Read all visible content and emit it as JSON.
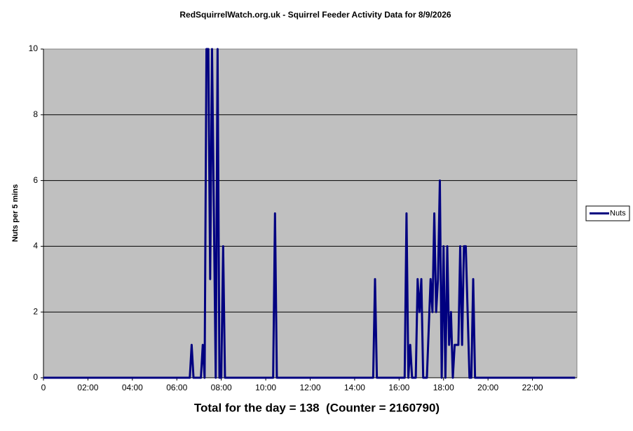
{
  "chart_data": {
    "type": "line",
    "title": "RedSquirrelWatch.org.uk  - Squirrel Feeder Activity Data for 8/9/2026",
    "y_label": "Nuts per 5 mins",
    "annotation": "Total for the day = 138  (Counter = 2160790)",
    "x": [
      0,
      395,
      400,
      405,
      425,
      430,
      435,
      440,
      445,
      450,
      455,
      460,
      465,
      470,
      475,
      480,
      485,
      490,
      620,
      625,
      630,
      890,
      895,
      900,
      975,
      980,
      985,
      990,
      995,
      1005,
      1010,
      1015,
      1020,
      1025,
      1035,
      1045,
      1050,
      1055,
      1060,
      1065,
      1070,
      1075,
      1080,
      1085,
      1090,
      1095,
      1100,
      1105,
      1110,
      1120,
      1125,
      1130,
      1135,
      1140,
      1145,
      1150,
      1155,
      1160,
      1165,
      1435
    ],
    "series": [
      {
        "name": "Nuts",
        "color": "#000080",
        "values": [
          0,
          0,
          1,
          0,
          0,
          1,
          0,
          10,
          10,
          3,
          10,
          5,
          0,
          10,
          0,
          0,
          4,
          0,
          0,
          5,
          0,
          0,
          3,
          0,
          0,
          5,
          0,
          1,
          0,
          0,
          3,
          2,
          3,
          0,
          0,
          3,
          2,
          5,
          2,
          3,
          6,
          0,
          4,
          0,
          4,
          1,
          2,
          0,
          1,
          1,
          4,
          1,
          4,
          4,
          2,
          0,
          0,
          3,
          0,
          0
        ]
      }
    ],
    "xlim": [
      0,
      1440
    ],
    "xticks": [
      0,
      {
        "value": 120,
        "label": "02:00"
      },
      {
        "value": 240,
        "label": "04:00"
      },
      {
        "value": 360,
        "label": "06:00"
      },
      {
        "value": 480,
        "label": "08:00"
      },
      {
        "value": 600,
        "label": "10:00"
      },
      {
        "value": 720,
        "label": "12:00"
      },
      {
        "value": 840,
        "label": "14:00"
      },
      {
        "value": 960,
        "label": "16:00"
      },
      {
        "value": 1080,
        "label": "18:00"
      },
      {
        "value": 1200,
        "label": "20:00"
      },
      {
        "value": 1320,
        "label": "22:00"
      }
    ],
    "ylim": [
      0,
      10
    ],
    "yticks": [
      0,
      2,
      4,
      6,
      8,
      10
    ],
    "grid": true,
    "plot_background": "#c0c0c0",
    "legend": "right"
  }
}
